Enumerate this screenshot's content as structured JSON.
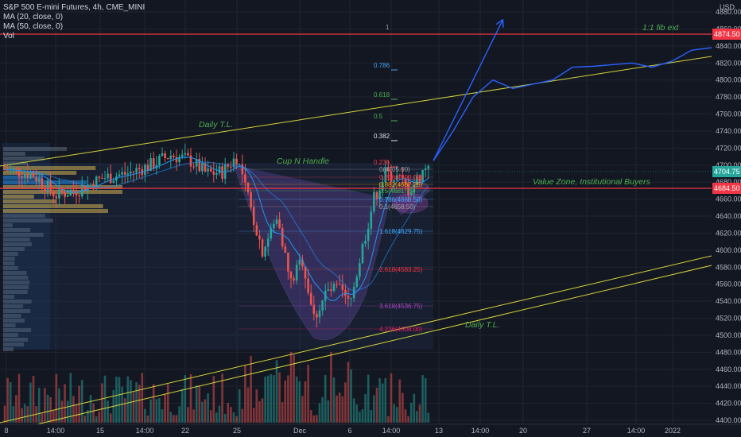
{
  "symbol": {
    "name": "S&P 500 E-mini Futures",
    "timeframe": "4h",
    "exchange": "CME_MINI",
    "indicators": [
      "MA (20, close, 0)",
      "MA (50, close, 0)",
      "Vol"
    ]
  },
  "price_axis": {
    "currency": "USD",
    "ticks": [
      4880,
      4860,
      4840,
      4820,
      4800,
      4780,
      4760,
      4740,
      4720,
      4700,
      4680,
      4660,
      4640,
      4620,
      4600,
      4580,
      4560,
      4540,
      4520,
      4500,
      4480,
      4460,
      4440,
      4420,
      4400
    ],
    "price_tags": [
      {
        "label": "4874.50",
        "color": "#f23645"
      },
      {
        "label": "4704.75",
        "color": "#26a69a"
      },
      {
        "label": "4684.50",
        "color": "#f23645"
      }
    ]
  },
  "time_axis": {
    "labels": [
      "8",
      "14:00",
      "15",
      "14:00",
      "22",
      "25",
      "Dec",
      "6",
      "14:00",
      "13",
      "14:00",
      "20",
      "27",
      "14:00",
      "2022"
    ]
  },
  "annotations": {
    "fib_ext_label": "1:1 fib ext",
    "fib_ext_level": "1",
    "daily_tl_upper": "Daily T.L.",
    "daily_tl_lower": "Daily T.L.",
    "cup_handle": "Cup N Handle",
    "value_zone": "Value Zone, Institutional Buyers"
  },
  "fib_upper_levels": [
    {
      "label": "0.786",
      "color": "#42a5f5"
    },
    {
      "label": "0.618",
      "color": "#4caf50"
    },
    {
      "label": "0.5",
      "color": "#4caf50"
    },
    {
      "label": "0.382",
      "color": "#e0e0e0"
    },
    {
      "label": "0.236",
      "color": "#f23645"
    }
  ],
  "fib_lower_levels": [
    {
      "label": "0(4705.00)",
      "color": "#9e9e9e"
    },
    {
      "label": "0.236(4700.00)",
      "color": "#f23645"
    },
    {
      "label": "0.382(4687.25)",
      "color": "#ff9800"
    },
    {
      "label": "0.5(4681.75)",
      "color": "#4caf50"
    },
    {
      "label": "0.786(4668.50)",
      "color": "#42a5f5"
    },
    {
      "label": "0.1(4658.50)",
      "color": "#9e9e9e"
    },
    {
      "label": "1.618(4629.75)",
      "color": "#42a5f5"
    },
    {
      "label": "2.618(4583.25)",
      "color": "#f23645"
    },
    {
      "label": "3.618(4536.75)",
      "color": "#ab47bc"
    },
    {
      "label": "4.236(4508.00)",
      "color": "#e91e63"
    }
  ],
  "chart_data": {
    "type": "candlestick",
    "title": "S&P 500 E-mini Futures, 4h, CME_MINI",
    "ylabel": "USD",
    "ylim": [
      4395,
      4895
    ],
    "projection": [
      [
        4684,
        4705
      ],
      [
        4710,
        4740
      ],
      [
        4720,
        4780
      ],
      [
        4730,
        4800
      ],
      [
        4745,
        4790
      ],
      [
        4755,
        4795
      ],
      [
        4770,
        4800
      ],
      [
        4790,
        4815
      ],
      [
        4805,
        4816
      ],
      [
        4825,
        4818
      ],
      [
        4845,
        4820
      ],
      [
        4860,
        4815
      ],
      [
        4880,
        4822
      ],
      [
        4900,
        4835
      ],
      [
        4920,
        4838
      ]
    ],
    "projection_arrow_target": [
      4745,
      4870
    ]
  }
}
